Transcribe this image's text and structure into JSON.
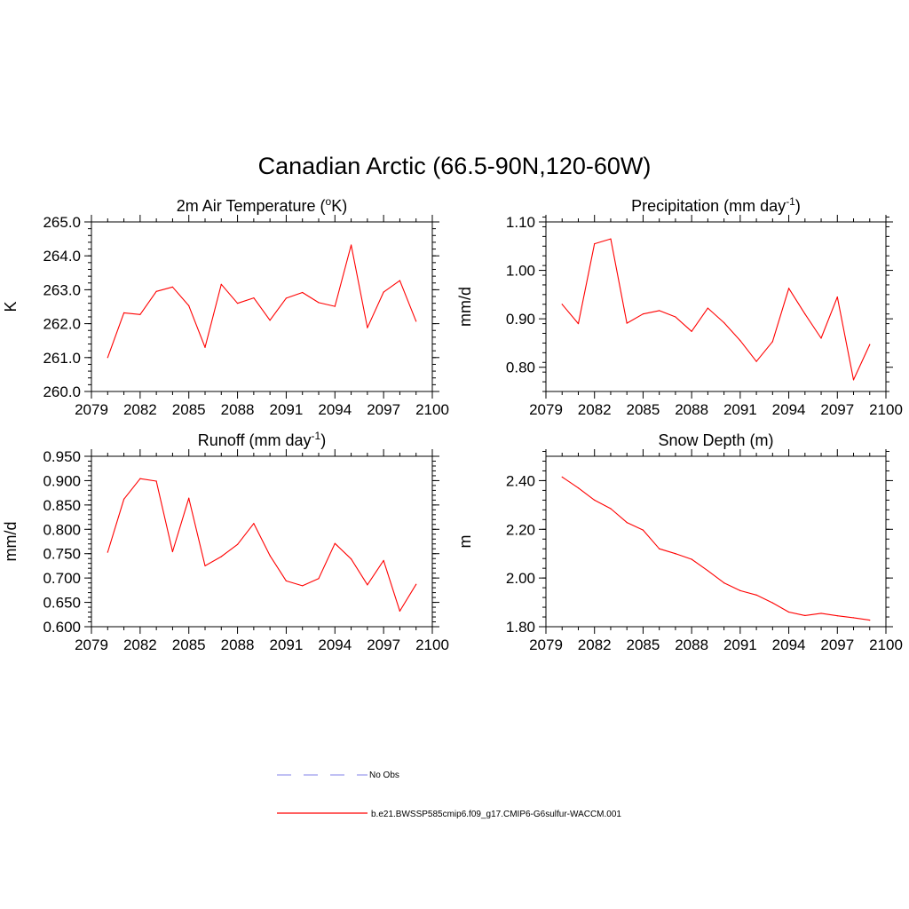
{
  "figure": {
    "title": "Canadian Arctic (66.5-90N,120-60W)"
  },
  "legend": {
    "entries": [
      {
        "label": "No Obs",
        "color": "#9a9aee",
        "style": "dashed"
      },
      {
        "label": "b.e21.BWSSP585cmip6.f09_g17.CMIP6-G6sulfur-WACCM.001",
        "color": "#ff0000",
        "style": "solid"
      }
    ]
  },
  "chart_data": [
    {
      "type": "line",
      "title": "2m Air Temperature (",
      "title_sup": "o",
      "title_end": "K)",
      "ylabel": "K",
      "xlim": [
        2079,
        2100
      ],
      "xticks": [
        2079,
        2082,
        2085,
        2088,
        2091,
        2094,
        2097,
        2100
      ],
      "ylim": [
        260.0,
        265.0
      ],
      "yticks": [
        "260.0",
        "261.0",
        "262.0",
        "263.0",
        "264.0",
        "265.0"
      ],
      "ytick_values": [
        260.0,
        261.0,
        262.0,
        263.0,
        264.0,
        265.0
      ],
      "yminor": 0.2,
      "series": [
        {
          "color": "#ff0000",
          "x": [
            2080,
            2081,
            2082,
            2083,
            2084,
            2085,
            2086,
            2087,
            2088,
            2089,
            2090,
            2091,
            2092,
            2093,
            2094,
            2095,
            2096,
            2097,
            2098,
            2099
          ],
          "values": [
            261.0,
            262.32,
            262.27,
            262.95,
            263.08,
            262.53,
            261.3,
            263.16,
            262.6,
            262.76,
            262.1,
            262.75,
            262.92,
            262.62,
            262.51,
            264.32,
            261.88,
            262.93,
            263.27,
            262.07
          ]
        }
      ]
    },
    {
      "type": "line",
      "title": "Precipitation (mm day",
      "title_sup": "-1",
      "title_end": ")",
      "ylabel": "mm/d",
      "xlim": [
        2079,
        2100
      ],
      "xticks": [
        2079,
        2082,
        2085,
        2088,
        2091,
        2094,
        2097,
        2100
      ],
      "ylim": [
        0.75,
        1.1
      ],
      "yticks": [
        "0.80",
        "0.90",
        "1.00",
        "1.10"
      ],
      "ytick_values": [
        0.8,
        0.9,
        1.0,
        1.1
      ],
      "yminor": 0.02,
      "series": [
        {
          "color": "#ff0000",
          "x": [
            2080,
            2081,
            2082,
            2083,
            2084,
            2085,
            2086,
            2087,
            2088,
            2089,
            2090,
            2091,
            2092,
            2093,
            2094,
            2095,
            2096,
            2097,
            2098,
            2099
          ],
          "values": [
            0.93,
            0.89,
            1.055,
            1.065,
            0.891,
            0.91,
            0.917,
            0.904,
            0.874,
            0.922,
            0.892,
            0.855,
            0.812,
            0.853,
            0.963,
            0.91,
            0.86,
            0.945,
            0.774,
            0.847
          ]
        }
      ]
    },
    {
      "type": "line",
      "title": "Runoff (mm day",
      "title_sup": "-1",
      "title_end": ")",
      "ylabel": "mm/d",
      "xlim": [
        2079,
        2100
      ],
      "xticks": [
        2079,
        2082,
        2085,
        2088,
        2091,
        2094,
        2097,
        2100
      ],
      "ylim": [
        0.6,
        0.95
      ],
      "yticks": [
        "0.600",
        "0.650",
        "0.700",
        "0.750",
        "0.800",
        "0.850",
        "0.900",
        "0.950"
      ],
      "ytick_values": [
        0.6,
        0.65,
        0.7,
        0.75,
        0.8,
        0.85,
        0.9,
        0.95
      ],
      "yminor": 0.01,
      "series": [
        {
          "color": "#ff0000",
          "x": [
            2080,
            2081,
            2082,
            2083,
            2084,
            2085,
            2086,
            2087,
            2088,
            2089,
            2090,
            2091,
            2092,
            2093,
            2094,
            2095,
            2096,
            2097,
            2098,
            2099
          ],
          "values": [
            0.753,
            0.862,
            0.904,
            0.899,
            0.754,
            0.864,
            0.725,
            0.744,
            0.769,
            0.812,
            0.746,
            0.694,
            0.684,
            0.699,
            0.771,
            0.739,
            0.686,
            0.736,
            0.632,
            0.687
          ]
        }
      ]
    },
    {
      "type": "line",
      "title": "Snow Depth (m)",
      "title_sup": "",
      "title_end": "",
      "ylabel": "m",
      "xlim": [
        2079,
        2100
      ],
      "xticks": [
        2079,
        2082,
        2085,
        2088,
        2091,
        2094,
        2097,
        2100
      ],
      "ylim": [
        1.8,
        2.5
      ],
      "yticks": [
        "1.80",
        "2.00",
        "2.20",
        "2.40"
      ],
      "ytick_values": [
        1.8,
        2.0,
        2.2,
        2.4
      ],
      "yminor": 0.04,
      "series": [
        {
          "color": "#ff0000",
          "x": [
            2080,
            2081,
            2082,
            2083,
            2084,
            2085,
            2086,
            2087,
            2088,
            2089,
            2090,
            2091,
            2092,
            2093,
            2094,
            2095,
            2096,
            2097,
            2098,
            2099
          ],
          "values": [
            2.415,
            2.37,
            2.32,
            2.285,
            2.228,
            2.197,
            2.12,
            2.1,
            2.077,
            2.03,
            1.98,
            1.948,
            1.93,
            1.898,
            1.86,
            1.846,
            1.855,
            1.845,
            1.837,
            1.827
          ]
        }
      ]
    }
  ]
}
